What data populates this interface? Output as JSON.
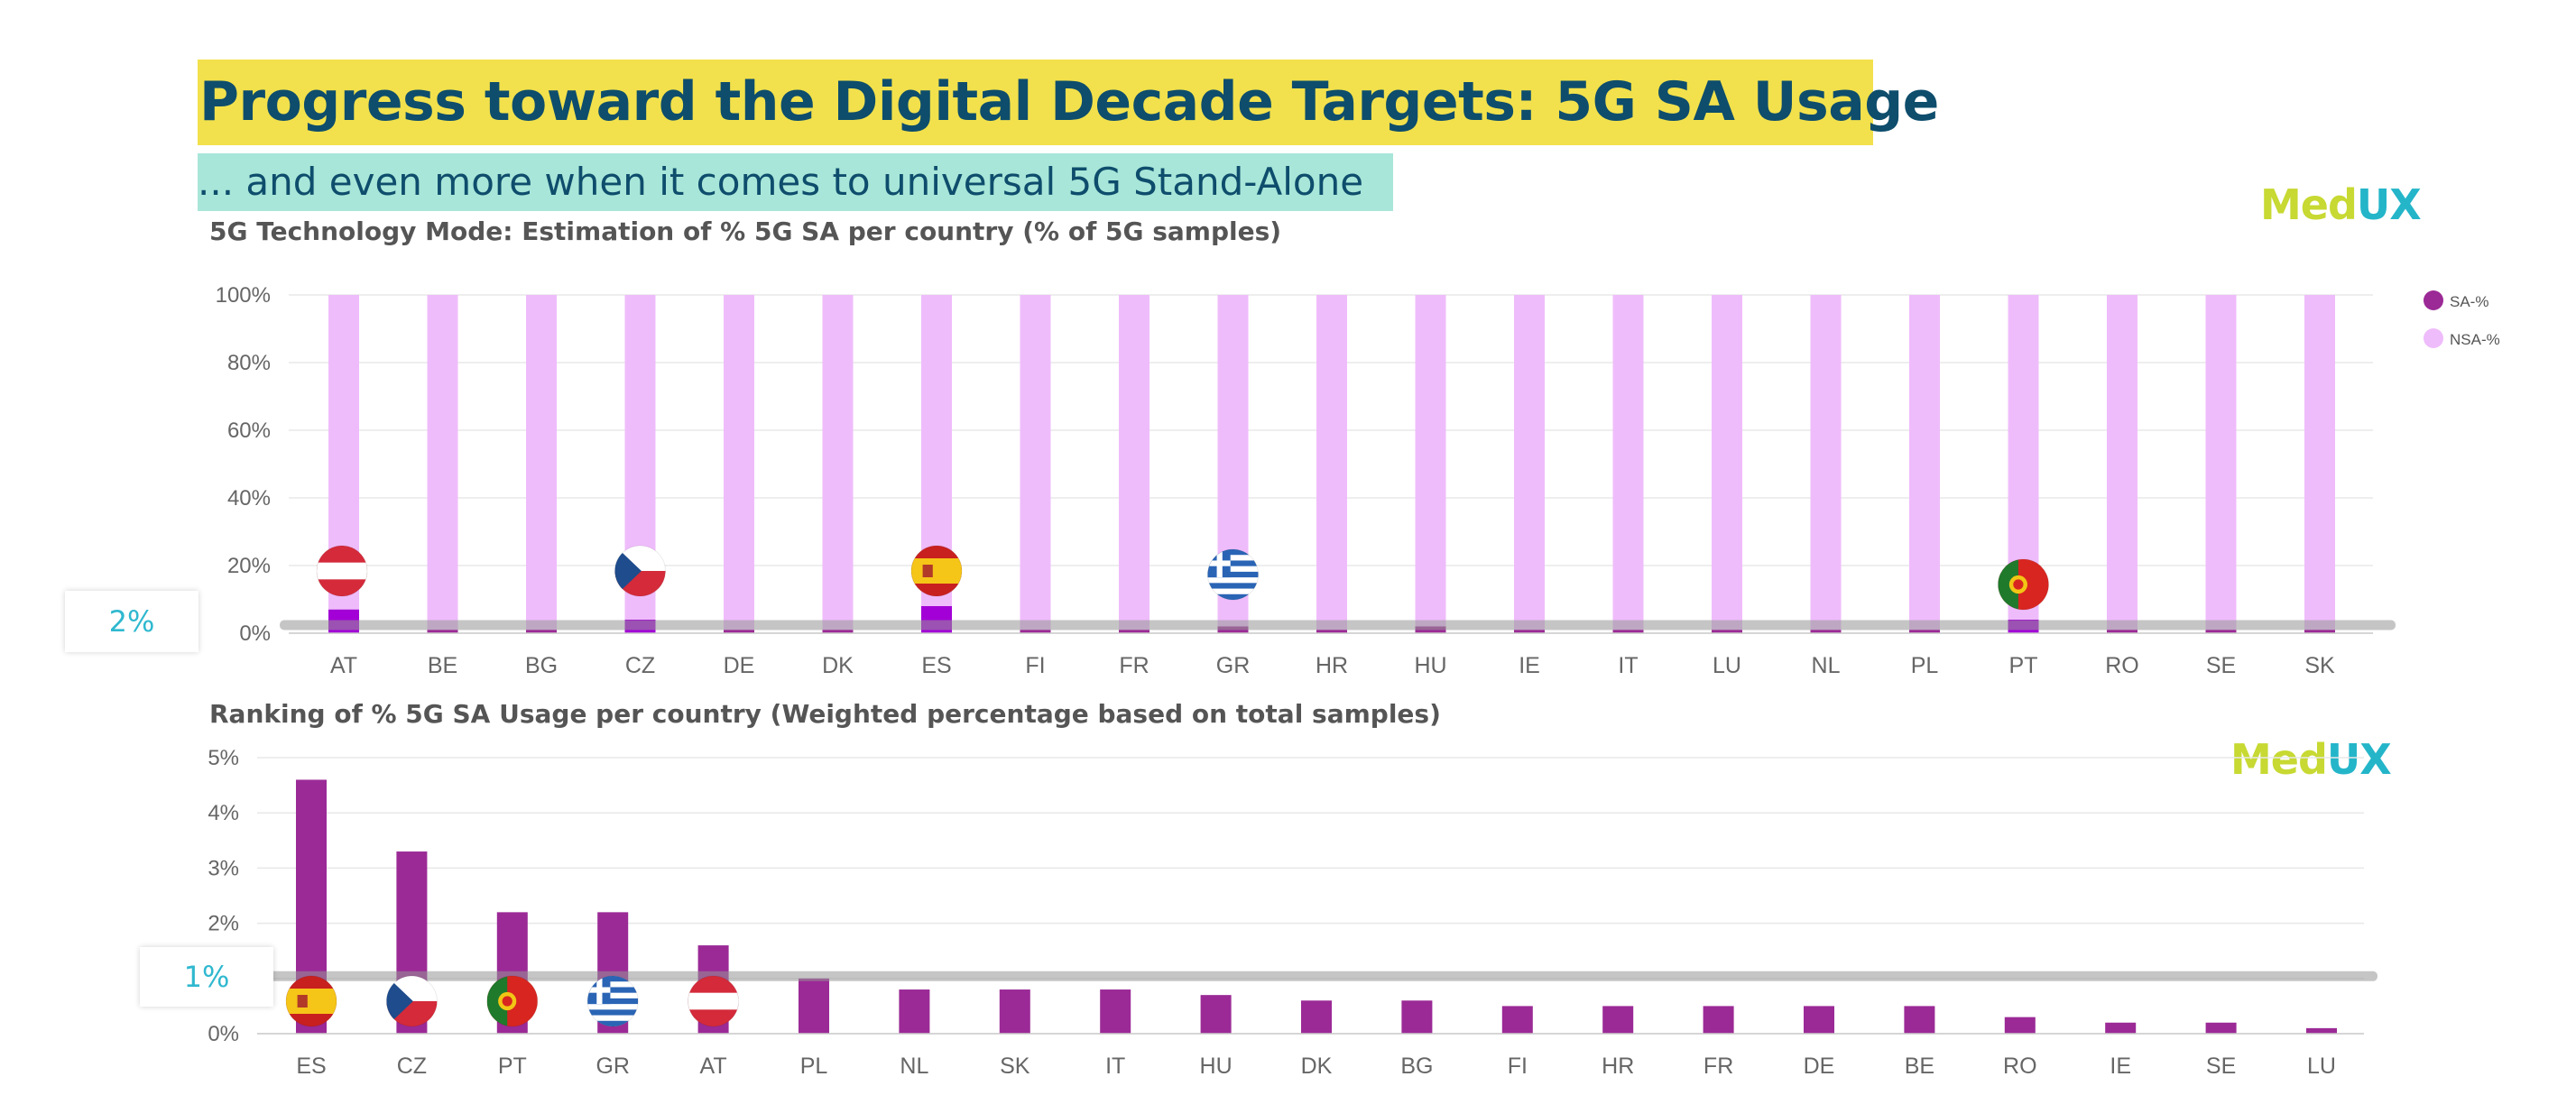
{
  "header": {
    "title": "Progress toward the Digital Decade Targets: 5G SA Usage",
    "subtitle": "... and even more when it comes to universal 5G Stand-Alone"
  },
  "logo": {
    "part1": "Med",
    "part2": "UX"
  },
  "callouts": {
    "top": "2%",
    "bottom": "1%"
  },
  "colors": {
    "sa": "#9b2a96",
    "nsa": "#efbcfb",
    "sa_highlight": "#a200d6",
    "title_band": "#f2e14c",
    "subtitle_band": "#a8e6d9",
    "title_text": "#0e4d6c",
    "callout_text": "#2fb8cf"
  },
  "chart_data": [
    {
      "type": "bar",
      "stacked": true,
      "title": "5G Technology Mode: Estimation of % 5G SA per country (% of 5G samples)",
      "categories": [
        "AT",
        "BE",
        "BG",
        "CZ",
        "DE",
        "DK",
        "ES",
        "FI",
        "FR",
        "GR",
        "HR",
        "HU",
        "IE",
        "IT",
        "LU",
        "NL",
        "PL",
        "PT",
        "RO",
        "SE",
        "SK"
      ],
      "series": [
        {
          "name": "SA-%",
          "values": [
            7,
            1,
            1,
            4,
            1,
            1,
            8,
            1,
            1,
            2,
            1,
            2,
            1,
            1,
            1,
            1,
            1,
            4,
            1,
            1,
            1
          ]
        },
        {
          "name": "NSA-%",
          "values": [
            93,
            99,
            99,
            96,
            99,
            99,
            92,
            99,
            99,
            98,
            99,
            98,
            99,
            99,
            99,
            99,
            99,
            96,
            99,
            99,
            99
          ]
        }
      ],
      "yticks": [
        "0%",
        "20%",
        "40%",
        "60%",
        "80%",
        "100%"
      ],
      "ylim": [
        0,
        100
      ],
      "grid": true,
      "legend": "right",
      "flags": [
        "AT",
        "CZ",
        "ES",
        "GR",
        "PT"
      ],
      "reference_line": 2
    },
    {
      "type": "bar",
      "title": "Ranking of % 5G SA Usage per country (Weighted percentage based on total samples)",
      "categories": [
        "ES",
        "CZ",
        "PT",
        "GR",
        "AT",
        "PL",
        "NL",
        "SK",
        "IT",
        "HU",
        "DK",
        "BG",
        "FI",
        "HR",
        "FR",
        "DE",
        "BE",
        "RO",
        "IE",
        "SE",
        "LU"
      ],
      "values": [
        4.6,
        3.3,
        2.2,
        2.2,
        1.6,
        1.0,
        0.8,
        0.8,
        0.8,
        0.7,
        0.6,
        0.6,
        0.5,
        0.5,
        0.5,
        0.5,
        0.5,
        0.3,
        0.2,
        0.2,
        0.1
      ],
      "yticks": [
        "0%",
        "1%",
        "2%",
        "3%",
        "4%",
        "5%"
      ],
      "ylim": [
        0,
        5
      ],
      "grid": true,
      "flags": [
        "ES",
        "CZ",
        "PT",
        "GR",
        "AT"
      ],
      "reference_line": 1
    }
  ]
}
